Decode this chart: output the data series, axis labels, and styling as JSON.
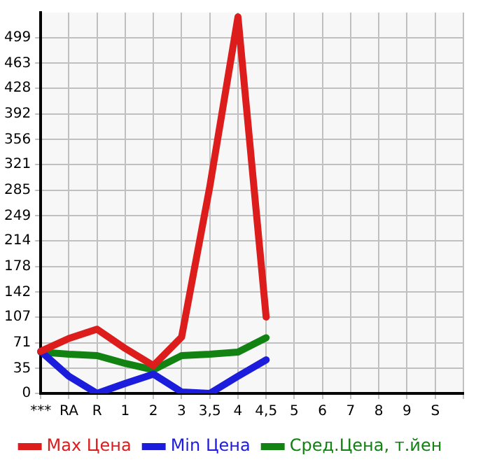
{
  "chart_data": {
    "type": "line",
    "categories": [
      "***",
      "RA",
      "R",
      "1",
      "2",
      "3",
      "3,5",
      "4",
      "4,5",
      "5",
      "6",
      "7",
      "8",
      "9",
      "S",
      null
    ],
    "series": [
      {
        "name": "Max Цена",
        "color": "#dd1c1c",
        "values": [
          59,
          77,
          90,
          63,
          39,
          79,
          290,
          528,
          107,
          null,
          null,
          null,
          null,
          null,
          null,
          null
        ]
      },
      {
        "name": "Min Цена",
        "color": "#1c1cdd",
        "values": [
          59,
          24,
          0,
          14,
          27,
          2,
          0,
          24,
          47,
          null,
          null,
          null,
          null,
          null,
          null,
          null
        ]
      },
      {
        "name": "Сред.Цена, т.йен",
        "color": "#128212",
        "values": [
          58,
          55,
          53,
          42,
          33,
          53,
          55,
          58,
          78,
          null,
          null,
          null,
          null,
          null,
          null,
          null
        ]
      }
    ],
    "ylim": [
      0,
      534
    ],
    "yticks": [
      0,
      35,
      71,
      107,
      142,
      178,
      214,
      249,
      285,
      321,
      356,
      392,
      428,
      463,
      499
    ],
    "grid": true,
    "legend": "bottom",
    "marker": "none",
    "line_style": "solid"
  }
}
